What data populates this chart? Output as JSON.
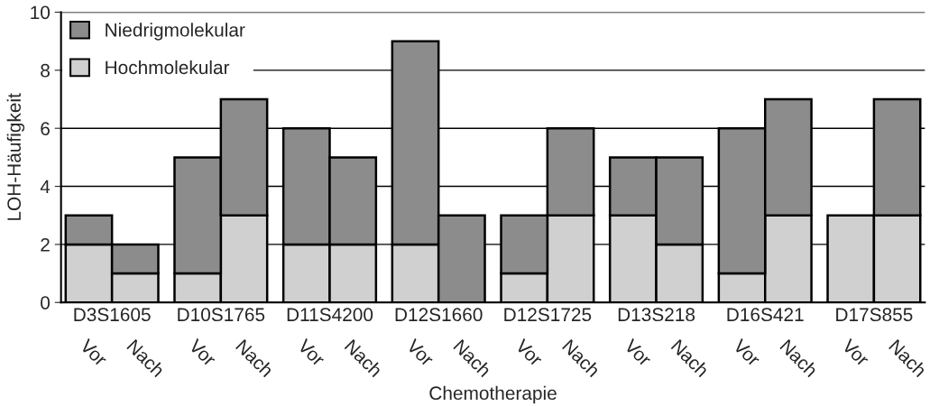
{
  "chart_data": {
    "type": "bar",
    "stacked": true,
    "xlabel": "Chemotherapie",
    "ylabel": "LOH-Häufigkeit",
    "categories": [
      "Vor",
      "Nach",
      "Vor",
      "Nach",
      "Vor",
      "Nach",
      "Vor",
      "Nach",
      "Vor",
      "Nach",
      "Vor",
      "Nach",
      "Vor",
      "Nach",
      "Vor",
      "Nach"
    ],
    "annotations": [
      "D3S1605",
      "D10S1765",
      "D11S4200",
      "D12S1660",
      "D12S1725",
      "D13S218",
      "D16S421",
      "D17S855"
    ],
    "series": [
      {
        "name": "Hochmolekular",
        "color": "#d0d0d0",
        "values": [
          2,
          1,
          1,
          3,
          2,
          2,
          2,
          0,
          1,
          3,
          3,
          2,
          1,
          3,
          3,
          3
        ]
      },
      {
        "name": "Niedrigmolekular",
        "color": "#8c8c8c",
        "values": [
          1,
          1,
          4,
          4,
          4,
          3,
          7,
          3,
          2,
          3,
          2,
          3,
          5,
          4,
          0,
          4
        ]
      }
    ],
    "ylim": [
      0,
      10
    ],
    "yticks": [
      0,
      2,
      4,
      6,
      8,
      10
    ],
    "grid": "y",
    "legend": "top left"
  }
}
